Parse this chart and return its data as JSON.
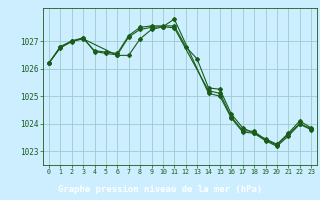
{
  "title": "Graphe pression niveau de la mer (hPa)",
  "background_color": "#cceeff",
  "grid_color": "#99cccc",
  "line_color": "#1a5c1a",
  "footer_color": "#2d6b2d",
  "text_color": "#1a5c1a",
  "xlim": [
    -0.5,
    23.5
  ],
  "ylim": [
    1022.5,
    1028.2
  ],
  "yticks": [
    1023,
    1024,
    1025,
    1026,
    1027
  ],
  "xticks": [
    0,
    1,
    2,
    3,
    4,
    5,
    6,
    7,
    8,
    9,
    10,
    11,
    12,
    13,
    14,
    15,
    16,
    17,
    18,
    19,
    20,
    21,
    22,
    23
  ],
  "series1_x": [
    0,
    1,
    2,
    3,
    4,
    5,
    6,
    7,
    8,
    9,
    10,
    11,
    12,
    13,
    14,
    15,
    16,
    17,
    18,
    19,
    20,
    21,
    22,
    23
  ],
  "series1_y": [
    1026.2,
    1026.8,
    1027.0,
    1027.1,
    1026.65,
    1026.6,
    1026.55,
    1027.2,
    1027.5,
    1027.55,
    1027.55,
    1027.55,
    1026.8,
    1026.35,
    1025.3,
    1025.25,
    1024.35,
    1023.85,
    1023.65,
    1023.45,
    1023.25,
    1023.65,
    1024.1,
    1023.85
  ],
  "series2_x": [
    0,
    1,
    2,
    3,
    4,
    5,
    6,
    7,
    8,
    9,
    10,
    11,
    14,
    15,
    16,
    17,
    18,
    19,
    20,
    21,
    22,
    23
  ],
  "series2_y": [
    1026.2,
    1026.78,
    1027.0,
    1027.12,
    1026.62,
    1026.55,
    1026.5,
    1027.15,
    1027.42,
    1027.5,
    1027.52,
    1027.48,
    1025.2,
    1025.1,
    1024.25,
    1023.75,
    1023.72,
    1023.42,
    1023.22,
    1023.62,
    1024.0,
    1023.82
  ],
  "series3_x": [
    0,
    1,
    2,
    3,
    6,
    7,
    8,
    9,
    10,
    11,
    14,
    15,
    16,
    17,
    18,
    19,
    20,
    21,
    22,
    23
  ],
  "series3_y": [
    1026.2,
    1026.75,
    1026.98,
    1027.08,
    1026.48,
    1026.48,
    1027.08,
    1027.42,
    1027.52,
    1027.8,
    1025.1,
    1025.0,
    1024.2,
    1023.7,
    1023.65,
    1023.38,
    1023.18,
    1023.55,
    1023.98,
    1023.78
  ]
}
